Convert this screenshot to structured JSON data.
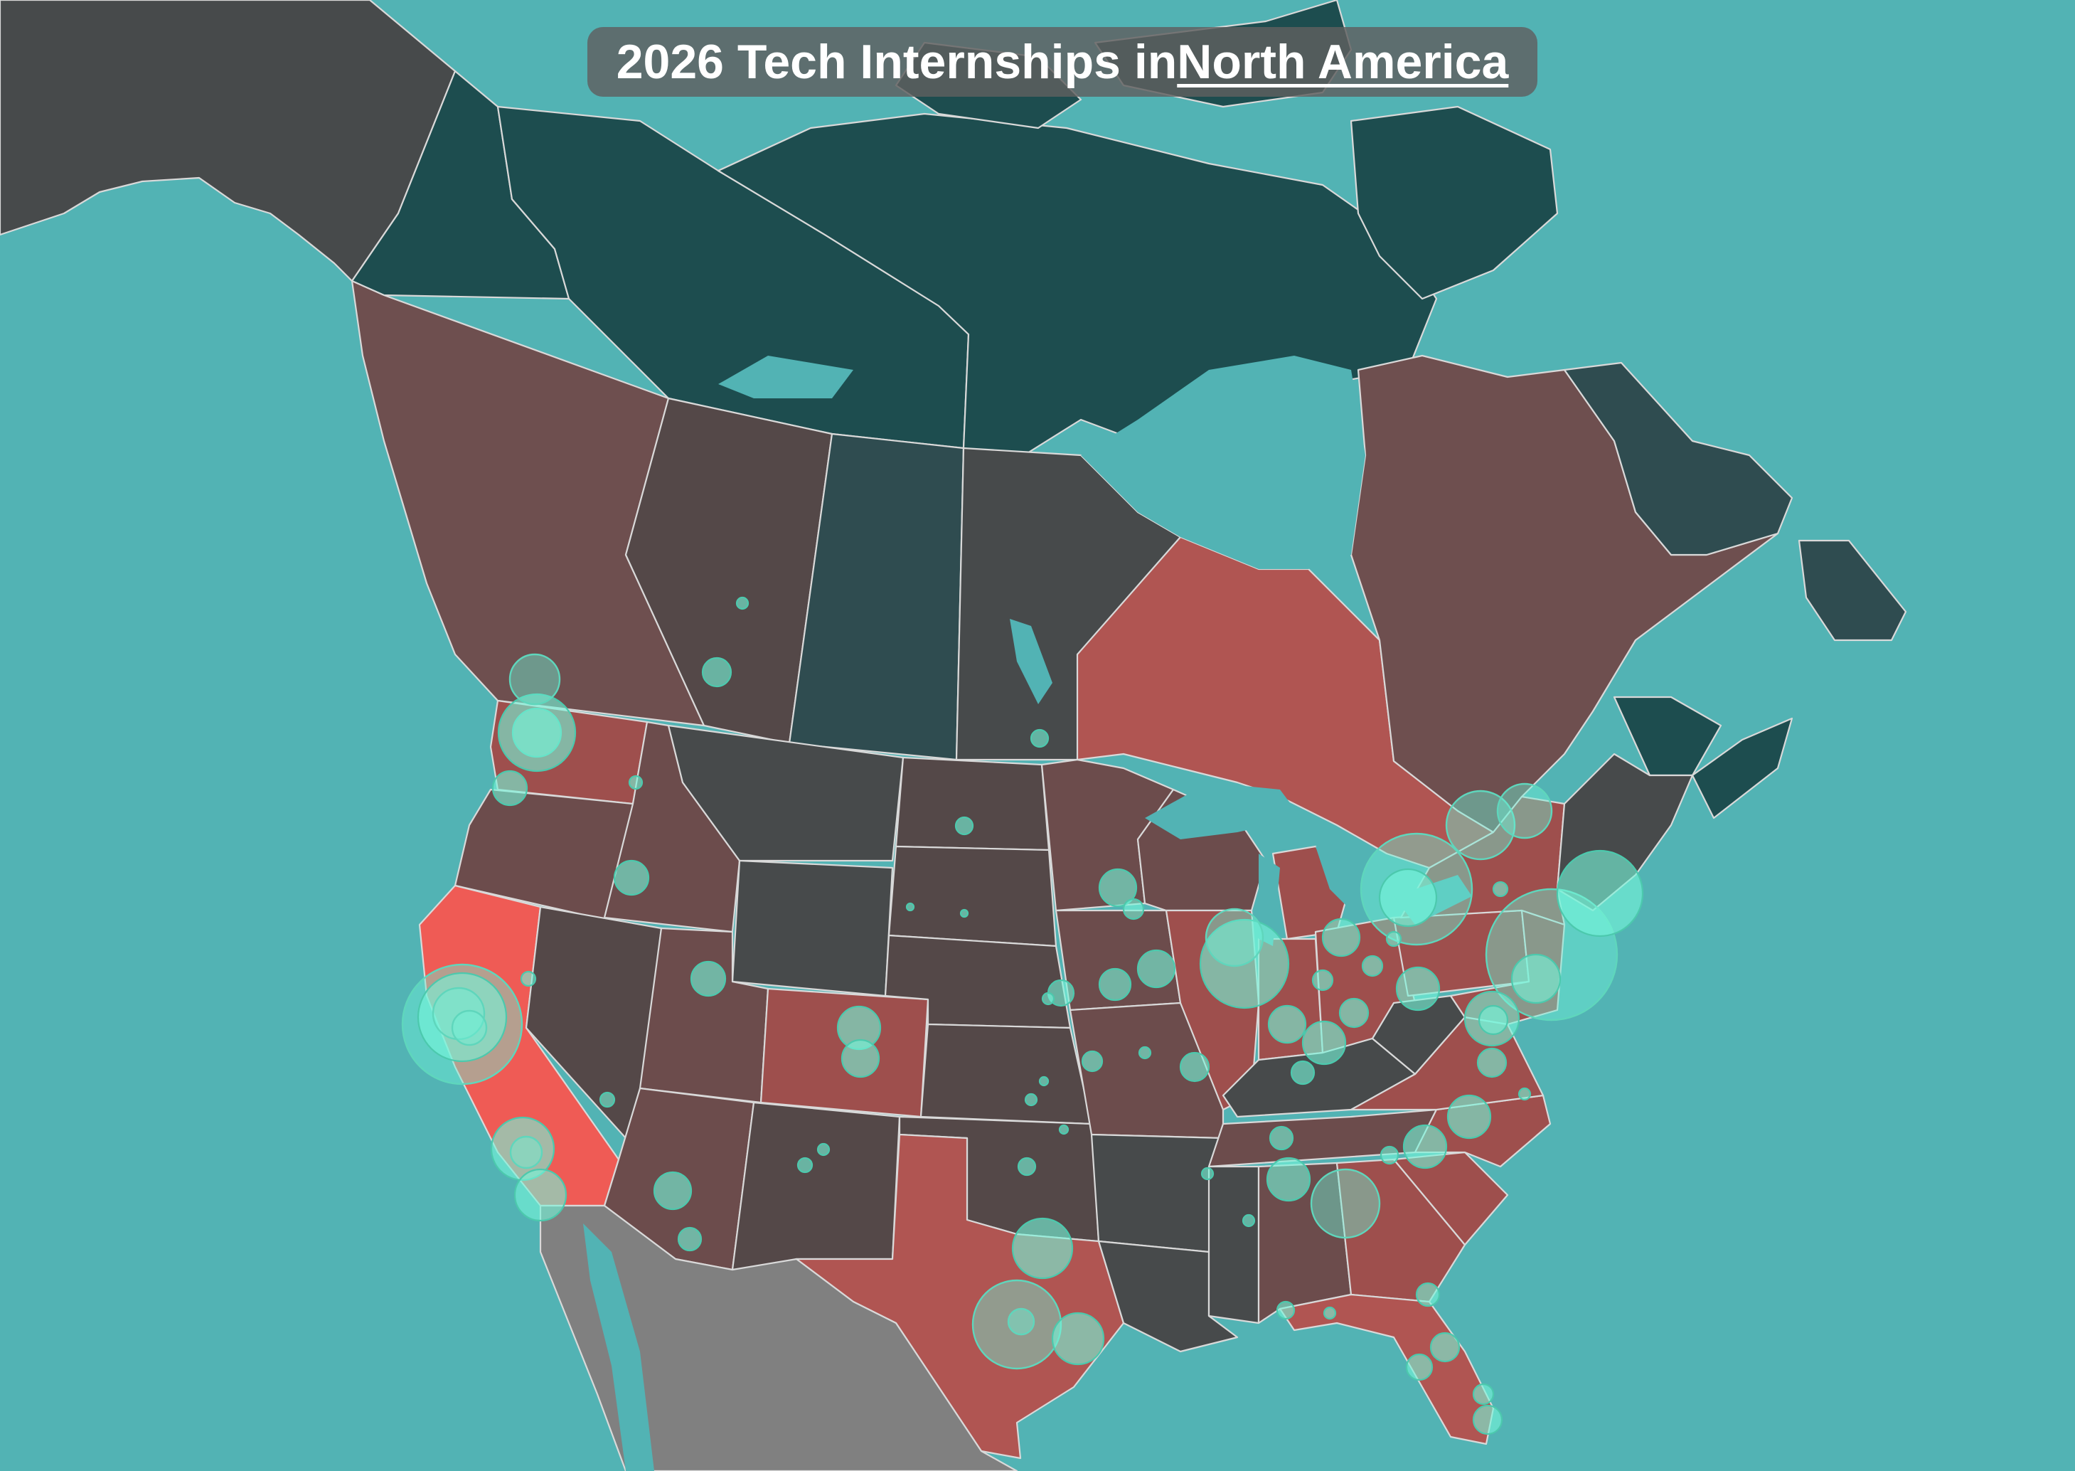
{
  "title": {
    "prefix": "2026 Tech Internships in ",
    "link": "North America"
  },
  "colors": {
    "ocean": "#52b3b4",
    "arctic": "#1d4d4f",
    "canada_east": "#2f4c50",
    "west_canada": "#6e4f4f",
    "dark_brown": "#544848",
    "gray_state": "#474a4b",
    "red_high": "#b05552",
    "red_mid": "#9e4f4d",
    "red_max": "#ef5b55",
    "brown_mid": "#6c4c4c",
    "mexico": "#808080",
    "bubble": "#6ef2d6"
  },
  "icons": [
    "internship-location-bubble"
  ]
}
